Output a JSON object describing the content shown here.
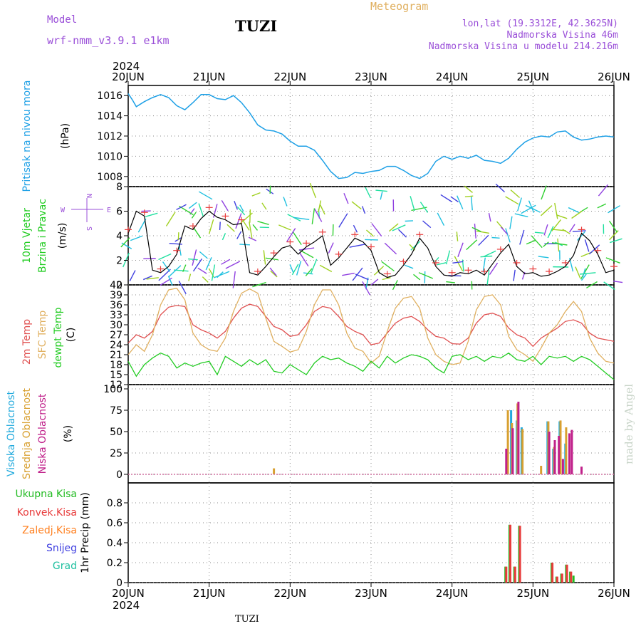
{
  "header": {
    "model_label": "Model",
    "model_name": "wrf-nmm_v3.9.1 e1km",
    "title": "TUZI",
    "meteogram": "Meteogram",
    "lonlat": "lon,lat (19.3312E, 42.3625N)",
    "altitude": "Nadmorska Visina 46m",
    "model_altitude": "Nadmorska Visina u modelu 214.216m",
    "footer": "TUZI",
    "signature": "made by Angel"
  },
  "colors": {
    "pressure": "#1ea0e6",
    "wind_speed": "#000000",
    "gust": "#e83c3c",
    "temp2m": "#e05050",
    "sfc_temp": "#e0b060",
    "dewpoint": "#22cc22",
    "cloud_high": "#22aadd",
    "cloud_mid": "#d8a030",
    "cloud_low": "#c0208a",
    "precip_total": "#22bb22",
    "precip_conv": "#e83c3c",
    "precip_frz": "#ff8020",
    "snow": "#4040e0",
    "graupel": "#20c0a0",
    "header_purple": "#9a4fd8",
    "header_orange": "#e0b060"
  },
  "chart_data": [
    {
      "type": "line",
      "panel": "pressure",
      "ylabel": [
        "Pritisak na nivou mora",
        "(hPa)"
      ],
      "ylim": [
        1007,
        1017
      ],
      "yticks": [
        1008,
        1010,
        1012,
        1014,
        1016
      ],
      "x_top_year": "2024",
      "x_bottom_year": "2024",
      "xticks": [
        "20JUN",
        "21JUN",
        "22JUN",
        "23JUN",
        "24JUN",
        "25JUN",
        "26JUN"
      ],
      "grid": true,
      "series": [
        {
          "x": [
            0,
            0.05,
            0.1,
            0.2,
            0.3,
            0.4,
            0.5,
            0.6,
            0.7,
            0.8,
            0.9,
            1.0,
            1.1,
            1.2,
            1.3,
            1.4,
            1.5,
            1.6,
            1.7,
            1.8,
            1.9,
            2.0,
            2.1,
            2.2,
            2.3,
            2.4,
            2.5,
            2.6,
            2.7,
            2.8,
            2.9,
            3.0,
            3.1,
            3.2,
            3.3,
            3.4,
            3.5,
            3.6,
            3.7,
            3.8,
            3.9,
            4.0,
            4.1,
            4.2,
            4.3,
            4.4,
            4.5,
            4.6,
            4.7,
            4.8,
            4.9,
            5.0,
            5.1,
            5.2,
            5.3,
            5.4,
            5.5,
            5.6,
            5.7,
            5.8,
            5.9,
            6.0
          ],
          "values": [
            1016.2,
            1015.6,
            1014.9,
            1015.4,
            1015.8,
            1016.1,
            1015.8,
            1015.0,
            1014.6,
            1015.3,
            1016.1,
            1016.1,
            1015.7,
            1015.6,
            1016.0,
            1015.3,
            1014.3,
            1013.1,
            1012.6,
            1012.5,
            1012.2,
            1011.5,
            1011.0,
            1011.0,
            1010.6,
            1009.6,
            1008.5,
            1007.8,
            1007.9,
            1008.4,
            1008.3,
            1008.5,
            1008.6,
            1009.0,
            1009.0,
            1008.6,
            1008.1,
            1007.8,
            1008.3,
            1009.5,
            1010.0,
            1009.7,
            1010.0,
            1009.8,
            1010.1,
            1009.6,
            1009.5,
            1009.3,
            1009.8,
            1010.7,
            1011.4,
            1011.8,
            1012.0,
            1011.9,
            1012.4,
            1012.5,
            1011.9,
            1011.6,
            1011.7,
            1011.9,
            1012.0,
            1011.9
          ]
        }
      ]
    },
    {
      "type": "line",
      "panel": "wind",
      "ylabel": [
        "10m Vjetar",
        "Brzina i Pravac",
        "(m/s)"
      ],
      "compass": {
        "n": "N",
        "s": "S",
        "w": "W",
        "e": "E"
      },
      "ylim": [
        0,
        8
      ],
      "yticks": [
        0,
        2,
        4,
        6,
        8
      ],
      "grid": true,
      "series": [
        {
          "name": "speed",
          "x": [
            0,
            0.1,
            0.2,
            0.3,
            0.4,
            0.5,
            0.6,
            0.7,
            0.8,
            0.9,
            1.0,
            1.1,
            1.2,
            1.3,
            1.4,
            1.5,
            1.6,
            1.7,
            1.8,
            1.9,
            2.0,
            2.1,
            2.2,
            2.3,
            2.4,
            2.5,
            2.6,
            2.7,
            2.8,
            2.9,
            3.0,
            3.1,
            3.2,
            3.3,
            3.4,
            3.5,
            3.6,
            3.7,
            3.8,
            3.9,
            4.0,
            4.1,
            4.2,
            4.3,
            4.4,
            4.5,
            4.6,
            4.7,
            4.8,
            4.9,
            5.0,
            5.1,
            5.2,
            5.3,
            5.4,
            5.5,
            5.6,
            5.7,
            5.8,
            5.9,
            6.0
          ],
          "values": [
            4.2,
            6.0,
            5.6,
            1.2,
            1.0,
            1.5,
            2.5,
            4.8,
            4.5,
            5.4,
            6.0,
            5.5,
            5.3,
            4.9,
            5.0,
            1.0,
            0.8,
            1.5,
            2.3,
            3.0,
            3.2,
            2.5,
            3.1,
            3.5,
            4.0,
            1.6,
            2.2,
            3.0,
            3.8,
            3.5,
            2.8,
            1.0,
            0.6,
            0.8,
            1.6,
            2.5,
            3.8,
            3.0,
            1.5,
            0.8,
            0.7,
            1.0,
            0.9,
            1.2,
            0.8,
            1.7,
            2.6,
            3.3,
            1.5,
            0.9,
            1.0,
            0.7,
            0.8,
            1.1,
            1.5,
            2.4,
            4.2,
            3.6,
            2.5,
            1.0,
            1.2
          ]
        }
      ]
    },
    {
      "type": "line",
      "panel": "temperature",
      "ylabel": [
        "2m Temp",
        "SFC Temp",
        "dewpt Temp",
        "(C)"
      ],
      "ylim": [
        12,
        42
      ],
      "yticks": [
        12,
        15,
        18,
        21,
        24,
        27,
        30,
        33,
        36,
        39,
        42
      ],
      "grid": true,
      "series": [
        {
          "name": "2m Temp",
          "x": [
            0,
            0.1,
            0.2,
            0.3,
            0.4,
            0.5,
            0.6,
            0.7,
            0.8,
            0.9,
            1.0,
            1.1,
            1.2,
            1.3,
            1.4,
            1.5,
            1.6,
            1.7,
            1.8,
            1.9,
            2.0,
            2.1,
            2.2,
            2.3,
            2.4,
            2.5,
            2.6,
            2.7,
            2.8,
            2.9,
            3.0,
            3.1,
            3.2,
            3.3,
            3.4,
            3.5,
            3.6,
            3.7,
            3.8,
            3.9,
            4.0,
            4.1,
            4.2,
            4.3,
            4.4,
            4.5,
            4.6,
            4.7,
            4.8,
            4.9,
            5.0,
            5.1,
            5.2,
            5.3,
            5.4,
            5.5,
            5.6,
            5.7,
            5.8,
            5.9,
            6.0
          ],
          "values": [
            24.5,
            27.0,
            26.0,
            28.0,
            33.0,
            35.3,
            35.8,
            35.5,
            30.0,
            28.5,
            27.5,
            26.0,
            28.0,
            32.0,
            35.0,
            36.2,
            35.5,
            32.5,
            29.5,
            28.5,
            26.5,
            27.0,
            30.0,
            34.0,
            35.5,
            35.0,
            32.5,
            29.5,
            28.0,
            27.0,
            24.0,
            24.5,
            27.5,
            30.5,
            32.0,
            32.5,
            31.0,
            28.5,
            26.5,
            26.0,
            24.3,
            24.2,
            26.0,
            30.5,
            33.0,
            33.5,
            32.5,
            29.0,
            27.0,
            26.0,
            23.5,
            26.0,
            27.5,
            29.0,
            31.0,
            31.5,
            30.5,
            27.5,
            26.0,
            25.5,
            25.0
          ]
        },
        {
          "name": "SFC Temp",
          "x": [
            0,
            0.1,
            0.2,
            0.3,
            0.4,
            0.5,
            0.6,
            0.7,
            0.8,
            0.9,
            1.0,
            1.1,
            1.2,
            1.3,
            1.4,
            1.5,
            1.6,
            1.7,
            1.8,
            1.9,
            2.0,
            2.1,
            2.2,
            2.3,
            2.4,
            2.5,
            2.6,
            2.7,
            2.8,
            2.9,
            3.0,
            3.1,
            3.2,
            3.3,
            3.4,
            3.5,
            3.6,
            3.7,
            3.8,
            3.9,
            4.0,
            4.1,
            4.2,
            4.3,
            4.4,
            4.5,
            4.6,
            4.7,
            4.8,
            4.9,
            5.0,
            5.1,
            5.2,
            5.3,
            5.4,
            5.5,
            5.6,
            5.7,
            5.8,
            5.9,
            6.0
          ],
          "values": [
            21.0,
            24.0,
            22.0,
            27.0,
            36.0,
            40.5,
            41.0,
            37.5,
            27.5,
            24.0,
            22.5,
            22.0,
            26.0,
            34.0,
            39.5,
            40.8,
            39.5,
            32.0,
            25.0,
            23.5,
            21.8,
            22.5,
            28.0,
            36.0,
            40.5,
            40.5,
            36.0,
            27.5,
            23.0,
            22.0,
            18.5,
            20.5,
            28.0,
            35.0,
            38.0,
            38.5,
            35.0,
            26.0,
            21.0,
            19.0,
            18.0,
            18.5,
            25.0,
            34.5,
            38.5,
            39.0,
            36.0,
            26.5,
            22.5,
            21.0,
            19.0,
            23.0,
            27.5,
            30.0,
            34.0,
            37.0,
            34.0,
            26.0,
            21.5,
            19.0,
            18.5
          ]
        },
        {
          "name": "dewpt Temp",
          "x": [
            0,
            0.1,
            0.2,
            0.3,
            0.4,
            0.5,
            0.6,
            0.7,
            0.8,
            0.9,
            1.0,
            1.1,
            1.2,
            1.3,
            1.4,
            1.5,
            1.6,
            1.7,
            1.8,
            1.9,
            2.0,
            2.1,
            2.2,
            2.3,
            2.4,
            2.5,
            2.6,
            2.7,
            2.8,
            2.9,
            3.0,
            3.1,
            3.2,
            3.3,
            3.4,
            3.5,
            3.6,
            3.7,
            3.8,
            3.9,
            4.0,
            4.1,
            4.2,
            4.3,
            4.4,
            4.5,
            4.6,
            4.7,
            4.8,
            4.9,
            5.0,
            5.1,
            5.2,
            5.3,
            5.4,
            5.5,
            5.6,
            5.7,
            5.8,
            5.9,
            6.0
          ],
          "values": [
            19.0,
            14.5,
            18.0,
            20.0,
            21.5,
            20.5,
            17.0,
            18.5,
            17.5,
            18.5,
            19.0,
            15.0,
            20.5,
            19.0,
            17.5,
            19.5,
            18.0,
            19.5,
            16.0,
            15.5,
            18.0,
            16.5,
            15.0,
            18.5,
            20.5,
            19.5,
            20.0,
            18.5,
            17.5,
            16.0,
            19.0,
            17.0,
            20.5,
            18.5,
            20.0,
            21.0,
            20.5,
            19.5,
            17.0,
            15.5,
            20.5,
            21.0,
            19.5,
            20.5,
            19.0,
            20.5,
            20.0,
            21.5,
            19.5,
            19.0,
            20.5,
            18.0,
            20.5,
            20.0,
            20.5,
            19.0,
            20.5,
            19.5,
            17.5,
            15.5,
            13.5
          ]
        }
      ]
    },
    {
      "type": "bar",
      "panel": "clouds",
      "ylabel": [
        "Visoka Oblacnost",
        "Srednja Oblacnost",
        "Niska Oblacnost",
        "(%)"
      ],
      "ylim": [
        -10,
        105
      ],
      "yticks": [
        0,
        25,
        50,
        75,
        100
      ],
      "grid": true,
      "series": [
        {
          "name": "Visoka Oblacnost",
          "x": [
            4.68,
            4.73,
            4.8,
            4.86,
            5.18,
            5.25,
            5.33,
            5.4
          ],
          "values": [
            18,
            75,
            63,
            55,
            62,
            30,
            62,
            36
          ]
        },
        {
          "name": "Srednja Oblacnost",
          "x": [
            1.8,
            4.69,
            4.74,
            4.81,
            4.87,
            5.1,
            5.19,
            5.26,
            5.34,
            5.41
          ],
          "values": [
            7,
            75,
            60,
            83,
            53,
            10,
            62,
            32,
            63,
            55
          ]
        },
        {
          "name": "Niska Oblacnost",
          "x": [
            4.67,
            4.75,
            4.82,
            5.2,
            5.27,
            5.32,
            5.37,
            5.45,
            5.48,
            5.6
          ],
          "values": [
            30,
            54,
            85,
            50,
            40,
            45,
            18,
            48,
            52,
            9
          ]
        }
      ]
    },
    {
      "type": "bar",
      "panel": "precip",
      "ylabel": [
        "1hr Precip (mm)"
      ],
      "legend": [
        "Ukupna Kisa",
        "Konvek.Kisa",
        "Zaledj.Kisa",
        "Snijeg",
        "Grad"
      ],
      "ylim": [
        0,
        1.0
      ],
      "yticks": [
        0,
        0.2,
        0.4,
        0.6,
        0.8
      ],
      "grid": true,
      "series": [
        {
          "name": "Ukupna Kisa",
          "x": [
            4.66,
            4.71,
            4.77,
            4.83,
            5.23,
            5.29,
            5.35,
            5.41,
            5.46,
            5.5
          ],
          "values": [
            0.16,
            0.58,
            0.16,
            0.57,
            0.2,
            0.06,
            0.09,
            0.18,
            0.11,
            0.07
          ]
        },
        {
          "name": "Konvek.Kisa",
          "x": [
            4.67,
            4.72,
            4.78,
            4.84,
            5.24,
            5.3,
            5.36,
            5.42,
            5.47
          ],
          "values": [
            0.16,
            0.58,
            0.16,
            0.57,
            0.2,
            0.06,
            0.09,
            0.18,
            0.11
          ]
        }
      ]
    }
  ]
}
